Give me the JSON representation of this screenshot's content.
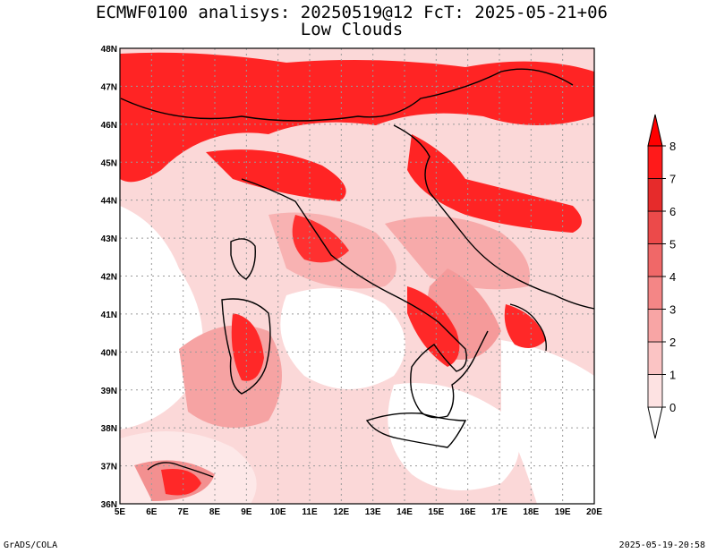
{
  "title_line1": "ECMWF0100 analisys: 20250519@12 FcT: 2025-05-21+06",
  "title_line2": "Low Clouds",
  "lat_labels": [
    "48N",
    "47N",
    "46N",
    "45N",
    "44N",
    "43N",
    "42N",
    "41N",
    "40N",
    "39N",
    "38N",
    "37N",
    "36N"
  ],
  "lon_labels": [
    "5E",
    "6E",
    "7E",
    "8E",
    "9E",
    "10E",
    "11E",
    "12E",
    "13E",
    "14E",
    "15E",
    "16E",
    "17E",
    "18E",
    "19E",
    "20E"
  ],
  "colorbar": {
    "levels": [
      "0",
      "1",
      "2",
      "3",
      "4",
      "5",
      "6",
      "7",
      "8"
    ],
    "colors": [
      "#ffffff",
      "#fde2e2",
      "#fbc4c4",
      "#f8a5a5",
      "#f48686",
      "#f06868",
      "#ec4a4a",
      "#e62b2b",
      "#ff1a1a"
    ]
  },
  "colors": {
    "land_border": "#000000",
    "grid": "#9a9a9a",
    "background": "#ffffff"
  },
  "footer_left": "GrADS/COLA",
  "footer_right": "2025-05-19-20:58"
}
